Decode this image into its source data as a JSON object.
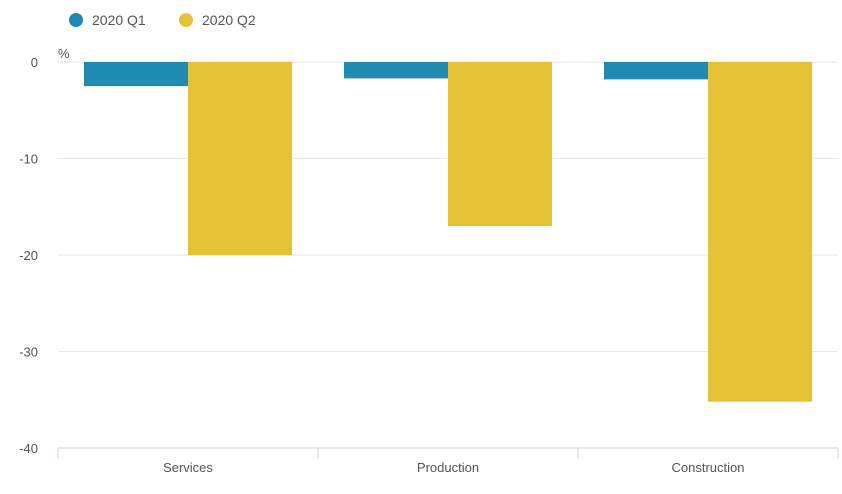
{
  "chart_data": {
    "type": "bar",
    "unit_label": "%",
    "categories": [
      "Services",
      "Production",
      "Construction"
    ],
    "series": [
      {
        "name": "2020 Q1",
        "color": "#1f8bb3",
        "values": [
          -2.5,
          -1.7,
          -1.8
        ]
      },
      {
        "name": "2020 Q2",
        "color": "#e3c335",
        "values": [
          -20.0,
          -17.0,
          -35.2
        ]
      }
    ],
    "ylim": [
      -40,
      0
    ],
    "yticks": [
      0,
      -10,
      -20,
      -30,
      -40
    ],
    "grid": true,
    "legend_position": "top-left"
  }
}
